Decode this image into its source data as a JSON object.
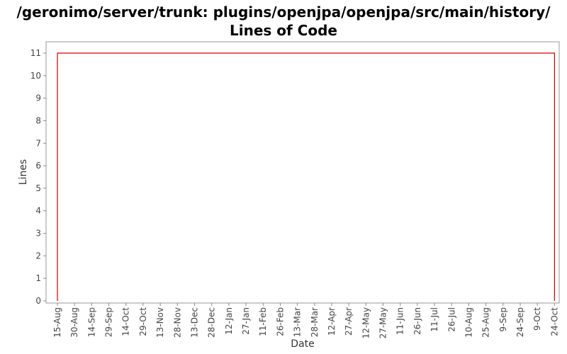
{
  "chart_data": {
    "type": "line",
    "title": "/geronimo/server/trunk: plugins/openjpa/openjpa/src/main/history/ Lines of Code",
    "xlabel": "Date",
    "ylabel": "Lines",
    "ylim": [
      0,
      11
    ],
    "yticks": [
      "0",
      "1",
      "2",
      "3",
      "4",
      "5",
      "6",
      "7",
      "8",
      "9",
      "10",
      "11"
    ],
    "xticks": [
      "15-Aug",
      "30-Aug",
      "14-Sep",
      "29-Sep",
      "14-Oct",
      "29-Oct",
      "13-Nov",
      "28-Nov",
      "13-Dec",
      "28-Dec",
      "12-Jan",
      "27-Jan",
      "11-Feb",
      "26-Feb",
      "13-Mar",
      "28-Mar",
      "12-Apr",
      "27-Apr",
      "12-May",
      "27-May",
      "11-Jun",
      "26-Jun",
      "11-Jul",
      "26-Jul",
      "10-Aug",
      "25-Aug",
      "9-Sep",
      "24-Sep",
      "9-Oct",
      "24-Oct"
    ],
    "series": [
      {
        "color": "#cc0000",
        "points": [
          {
            "x": "15-Aug",
            "y": 0
          },
          {
            "x": "15-Aug",
            "y": 11
          },
          {
            "x": "24-Oct",
            "y": 11
          },
          {
            "x": "24-Oct",
            "y": 0
          }
        ]
      }
    ],
    "grid": false
  }
}
